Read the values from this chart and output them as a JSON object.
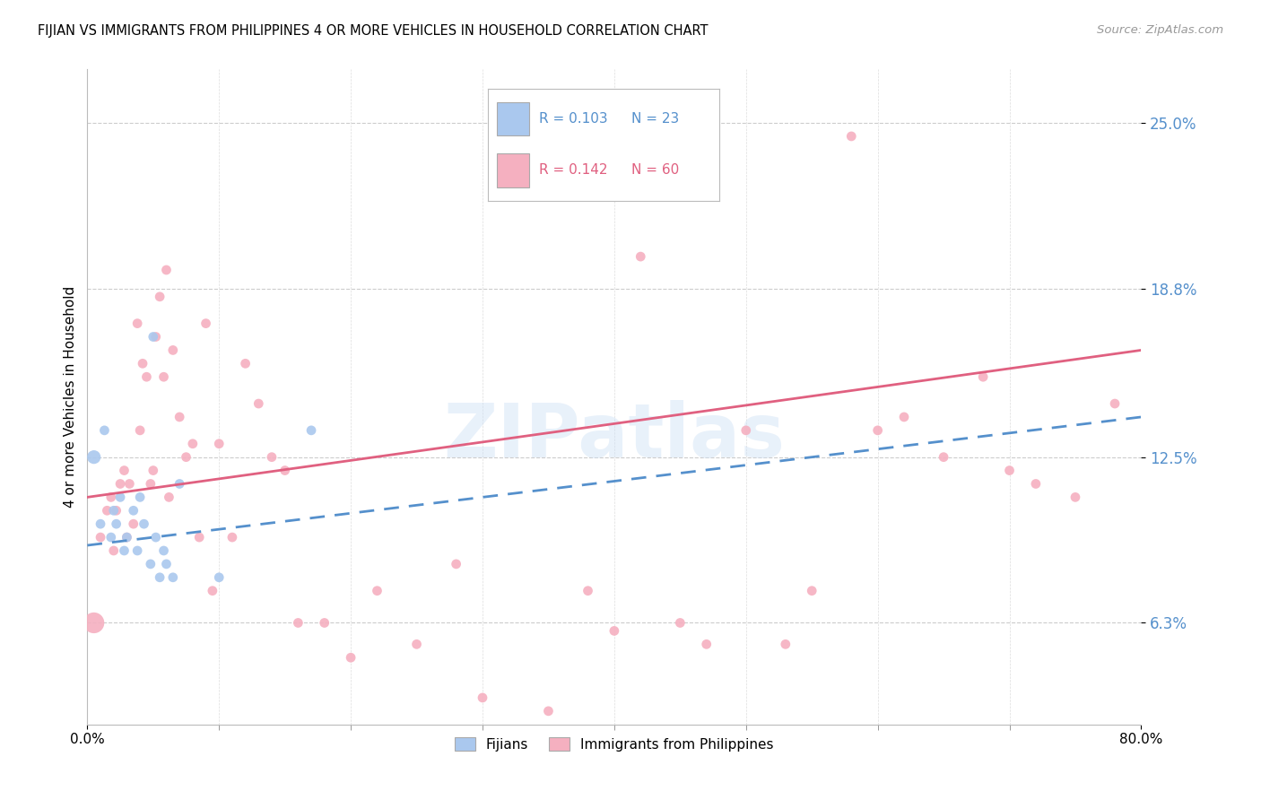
{
  "title": "FIJIAN VS IMMIGRANTS FROM PHILIPPINES 4 OR MORE VEHICLES IN HOUSEHOLD CORRELATION CHART",
  "source": "Source: ZipAtlas.com",
  "ylabel": "4 or more Vehicles in Household",
  "ytick_labels": [
    "6.3%",
    "12.5%",
    "18.8%",
    "25.0%"
  ],
  "ytick_values": [
    6.3,
    12.5,
    18.8,
    25.0
  ],
  "xlim": [
    0.0,
    80.0
  ],
  "ylim": [
    2.5,
    27.0
  ],
  "fijian_color": "#aac8ee",
  "philippines_color": "#f5b0c0",
  "fijian_line_color": "#5590cc",
  "philippines_line_color": "#e06080",
  "fijian_line_style": "--",
  "philippines_line_style": "-",
  "fijians_x": [
    0.5,
    1.0,
    1.3,
    1.8,
    2.0,
    2.2,
    2.5,
    2.8,
    3.0,
    3.5,
    3.8,
    4.0,
    4.3,
    4.8,
    5.0,
    5.2,
    5.5,
    5.8,
    6.0,
    6.5,
    7.0,
    10.0,
    17.0
  ],
  "fijians_y": [
    12.5,
    10.0,
    13.5,
    9.5,
    10.5,
    10.0,
    11.0,
    9.0,
    9.5,
    10.5,
    9.0,
    11.0,
    10.0,
    8.5,
    17.0,
    9.5,
    8.0,
    9.0,
    8.5,
    8.0,
    11.5,
    8.0,
    13.5
  ],
  "fijians_sizes": [
    120,
    60,
    60,
    60,
    60,
    60,
    60,
    60,
    60,
    60,
    60,
    60,
    60,
    60,
    60,
    60,
    60,
    60,
    60,
    60,
    60,
    60,
    60
  ],
  "philippines_x": [
    0.5,
    1.0,
    1.5,
    1.8,
    2.0,
    2.2,
    2.5,
    2.8,
    3.0,
    3.2,
    3.5,
    3.8,
    4.0,
    4.2,
    4.5,
    4.8,
    5.0,
    5.2,
    5.5,
    5.8,
    6.0,
    6.2,
    6.5,
    7.0,
    7.5,
    8.0,
    8.5,
    9.0,
    9.5,
    10.0,
    11.0,
    12.0,
    13.0,
    14.0,
    15.0,
    16.0,
    18.0,
    20.0,
    22.0,
    25.0,
    28.0,
    30.0,
    35.0,
    38.0,
    40.0,
    42.0,
    45.0,
    47.0,
    50.0,
    53.0,
    55.0,
    58.0,
    60.0,
    62.0,
    65.0,
    68.0,
    70.0,
    72.0,
    75.0,
    78.0
  ],
  "philippines_y": [
    6.3,
    9.5,
    10.5,
    11.0,
    9.0,
    10.5,
    11.5,
    12.0,
    9.5,
    11.5,
    10.0,
    17.5,
    13.5,
    16.0,
    15.5,
    11.5,
    12.0,
    17.0,
    18.5,
    15.5,
    19.5,
    11.0,
    16.5,
    14.0,
    12.5,
    13.0,
    9.5,
    17.5,
    7.5,
    13.0,
    9.5,
    16.0,
    14.5,
    12.5,
    12.0,
    6.3,
    6.3,
    5.0,
    7.5,
    5.5,
    8.5,
    3.5,
    3.0,
    7.5,
    6.0,
    20.0,
    6.3,
    5.5,
    13.5,
    5.5,
    7.5,
    24.5,
    13.5,
    14.0,
    12.5,
    15.5,
    12.0,
    11.5,
    11.0,
    14.5
  ],
  "philippines_sizes": [
    280,
    60,
    60,
    60,
    60,
    60,
    60,
    60,
    60,
    60,
    60,
    60,
    60,
    60,
    60,
    60,
    60,
    60,
    60,
    60,
    60,
    60,
    60,
    60,
    60,
    60,
    60,
    60,
    60,
    60,
    60,
    60,
    60,
    60,
    60,
    60,
    60,
    60,
    60,
    60,
    60,
    60,
    60,
    60,
    60,
    60,
    60,
    60,
    60,
    60,
    60,
    60,
    60,
    60,
    60,
    60,
    60,
    60,
    60,
    60
  ],
  "philippines_line_y0": 11.0,
  "philippines_line_y1": 16.5,
  "fijian_line_y0": 9.2,
  "fijian_line_y1": 14.0,
  "xtick_minor_positions": [
    10,
    20,
    30,
    40,
    50,
    60,
    70
  ],
  "watermark_text": "ZIPatlas",
  "legend_r1_color": "#5590cc",
  "legend_r2_color": "#e06080"
}
